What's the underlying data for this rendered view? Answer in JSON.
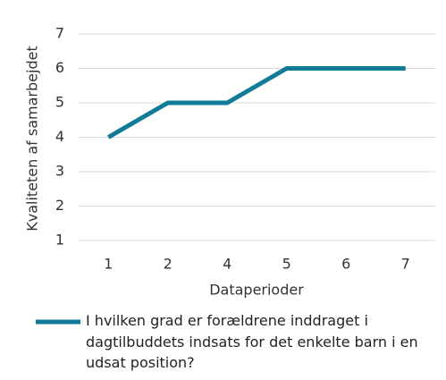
{
  "chart_data": {
    "type": "line",
    "y_label": "Kvaliteten af samarbejdet",
    "x_label": "Dataperioder",
    "categories": [
      "1",
      "2",
      "4",
      "5",
      "6",
      "7"
    ],
    "series": [
      {
        "name": "I hvilken grad er forældrene inddraget i dagtilbuddets indsats for det enkelte barn i en udsat position?",
        "color": "#127b98",
        "values": [
          4,
          5,
          5,
          6,
          6,
          6
        ]
      }
    ],
    "ylim": [
      1,
      7
    ],
    "yticks": [
      1,
      2,
      3,
      4,
      5,
      6,
      7
    ],
    "grid": true,
    "legend": "bottom"
  }
}
